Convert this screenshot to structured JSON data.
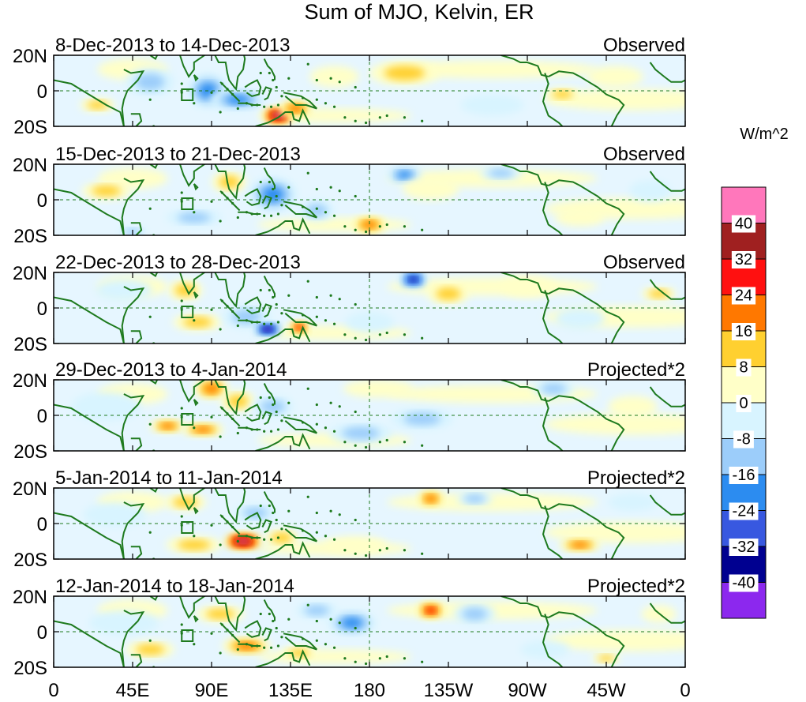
{
  "chart_data": {
    "type": "heatmap",
    "title": "Sum of MJO, Kelvin, ER",
    "units_label": "W/m^2",
    "x_ticks": [
      "0",
      "45E",
      "90E",
      "135E",
      "180",
      "135W",
      "90W",
      "45W",
      "0"
    ],
    "y_ticks": [
      "20N",
      "0",
      "20S"
    ],
    "lon_range": [
      0,
      360
    ],
    "lat_range": [
      -20,
      20
    ],
    "panels": [
      {
        "dates": "8-Dec-2013 to 14-Dec-2013",
        "kind": "Observed"
      },
      {
        "dates": "15-Dec-2013 to 21-Dec-2013",
        "kind": "Observed"
      },
      {
        "dates": "22-Dec-2013 to 28-Dec-2013",
        "kind": "Observed"
      },
      {
        "dates": "29-Dec-2013 to 4-Jan-2014",
        "kind": "Projected*2"
      },
      {
        "dates": "5-Jan-2014 to 11-Jan-2014",
        "kind": "Projected*2"
      },
      {
        "dates": "12-Jan-2014 to 18-Jan-2014",
        "kind": "Projected*2"
      }
    ],
    "colorbar": {
      "levels": [
        "40",
        "32",
        "24",
        "16",
        "8",
        "0",
        "-8",
        "-16",
        "-24",
        "-32",
        "-40"
      ],
      "colors": [
        "#ff77bb",
        "#a02020",
        "#ff1010",
        "#ff7800",
        "#ffd030",
        "#ffffc8",
        "#d8f4ff",
        "#9ccdfa",
        "#2c8cf0",
        "#3858e0",
        "#000090",
        "#8c28ee"
      ]
    },
    "anomalies": [
      [
        {
          "lon": 25,
          "lat": -8,
          "v": 12,
          "dlon": 10,
          "dlat": 4
        },
        {
          "lon": 55,
          "lat": 5,
          "v": -10,
          "dlon": 14,
          "dlat": 8
        },
        {
          "lon": 88,
          "lat": 0,
          "v": -22,
          "dlon": 12,
          "dlat": 10
        },
        {
          "lon": 105,
          "lat": -5,
          "v": -20,
          "dlon": 16,
          "dlat": 6
        },
        {
          "lon": 128,
          "lat": -14,
          "v": 42,
          "dlon": 9,
          "dlat": 5
        },
        {
          "lon": 138,
          "lat": -10,
          "v": 18,
          "dlon": 10,
          "dlat": 5
        },
        {
          "lon": 160,
          "lat": 8,
          "v": 8,
          "dlon": 14,
          "dlat": 6
        },
        {
          "lon": 200,
          "lat": 10,
          "v": 9,
          "dlon": 20,
          "dlat": 7
        },
        {
          "lon": 250,
          "lat": -8,
          "v": -6,
          "dlon": 18,
          "dlat": 6
        },
        {
          "lon": 290,
          "lat": -2,
          "v": 14,
          "dlon": 10,
          "dlat": 4
        },
        {
          "lon": 320,
          "lat": 8,
          "v": 8,
          "dlon": 16,
          "dlat": 6
        }
      ],
      [
        {
          "lon": 30,
          "lat": 5,
          "v": 12,
          "dlon": 14,
          "dlat": 5
        },
        {
          "lon": 45,
          "lat": -18,
          "v": -16,
          "dlon": 8,
          "dlat": 3
        },
        {
          "lon": 80,
          "lat": -10,
          "v": -12,
          "dlon": 16,
          "dlat": 5
        },
        {
          "lon": 100,
          "lat": 10,
          "v": 10,
          "dlon": 10,
          "dlat": 6
        },
        {
          "lon": 125,
          "lat": 3,
          "v": -24,
          "dlon": 14,
          "dlat": 10
        },
        {
          "lon": 150,
          "lat": -6,
          "v": -12,
          "dlon": 10,
          "dlat": 6
        },
        {
          "lon": 180,
          "lat": -14,
          "v": 24,
          "dlon": 10,
          "dlat": 5
        },
        {
          "lon": 200,
          "lat": 14,
          "v": -18,
          "dlon": 10,
          "dlat": 5
        },
        {
          "lon": 215,
          "lat": 6,
          "v": 8,
          "dlon": 16,
          "dlat": 6
        },
        {
          "lon": 255,
          "lat": 15,
          "v": -12,
          "dlon": 12,
          "dlat": 4
        },
        {
          "lon": 300,
          "lat": -10,
          "v": 8,
          "dlon": 14,
          "dlat": 5
        },
        {
          "lon": 340,
          "lat": 5,
          "v": -8,
          "dlon": 12,
          "dlat": 6
        }
      ],
      [
        {
          "lon": 40,
          "lat": 10,
          "v": -8,
          "dlon": 16,
          "dlat": 6
        },
        {
          "lon": 75,
          "lat": 10,
          "v": 16,
          "dlon": 10,
          "dlat": 6
        },
        {
          "lon": 82,
          "lat": -8,
          "v": 14,
          "dlon": 14,
          "dlat": 5
        },
        {
          "lon": 110,
          "lat": -5,
          "v": -10,
          "dlon": 14,
          "dlat": 7
        },
        {
          "lon": 122,
          "lat": -12,
          "v": -44,
          "dlon": 8,
          "dlat": 4
        },
        {
          "lon": 140,
          "lat": -11,
          "v": 26,
          "dlon": 6,
          "dlat": 4
        },
        {
          "lon": 205,
          "lat": 16,
          "v": -34,
          "dlon": 8,
          "dlat": 5
        },
        {
          "lon": 225,
          "lat": 8,
          "v": 10,
          "dlon": 12,
          "dlat": 6
        },
        {
          "lon": 180,
          "lat": -8,
          "v": -8,
          "dlon": 14,
          "dlat": 6
        },
        {
          "lon": 270,
          "lat": 12,
          "v": 8,
          "dlon": 16,
          "dlat": 6
        },
        {
          "lon": 300,
          "lat": -6,
          "v": -8,
          "dlon": 14,
          "dlat": 6
        },
        {
          "lon": 345,
          "lat": 8,
          "v": 14,
          "dlon": 10,
          "dlat": 4
        }
      ],
      [
        {
          "lon": 30,
          "lat": 5,
          "v": -8,
          "dlon": 20,
          "dlat": 8
        },
        {
          "lon": 65,
          "lat": -6,
          "v": 20,
          "dlon": 10,
          "dlat": 4
        },
        {
          "lon": 85,
          "lat": -8,
          "v": 18,
          "dlon": 12,
          "dlat": 4
        },
        {
          "lon": 90,
          "lat": 15,
          "v": 20,
          "dlon": 10,
          "dlat": 6
        },
        {
          "lon": 105,
          "lat": 8,
          "v": 14,
          "dlon": 10,
          "dlat": 6
        },
        {
          "lon": 125,
          "lat": 5,
          "v": -12,
          "dlon": 12,
          "dlat": 6
        },
        {
          "lon": 175,
          "lat": -10,
          "v": -16,
          "dlon": 18,
          "dlat": 6
        },
        {
          "lon": 210,
          "lat": -2,
          "v": -10,
          "dlon": 18,
          "dlat": 6
        },
        {
          "lon": 185,
          "lat": 15,
          "v": 8,
          "dlon": 20,
          "dlat": 5
        },
        {
          "lon": 285,
          "lat": 15,
          "v": -14,
          "dlon": 12,
          "dlat": 5
        },
        {
          "lon": 330,
          "lat": 5,
          "v": 6,
          "dlon": 14,
          "dlat": 6
        }
      ],
      [
        {
          "lon": 35,
          "lat": 5,
          "v": -8,
          "dlon": 18,
          "dlat": 7
        },
        {
          "lon": 75,
          "lat": 12,
          "v": 12,
          "dlon": 12,
          "dlat": 5
        },
        {
          "lon": 80,
          "lat": -12,
          "v": 16,
          "dlon": 16,
          "dlat": 5
        },
        {
          "lon": 108,
          "lat": -10,
          "v": 42,
          "dlon": 11,
          "dlat": 5
        },
        {
          "lon": 130,
          "lat": -8,
          "v": 16,
          "dlon": 10,
          "dlat": 5
        },
        {
          "lon": 115,
          "lat": 6,
          "v": -10,
          "dlon": 12,
          "dlat": 5
        },
        {
          "lon": 172,
          "lat": -12,
          "v": 8,
          "dlon": 18,
          "dlat": 5
        },
        {
          "lon": 215,
          "lat": 14,
          "v": 24,
          "dlon": 8,
          "dlat": 5
        },
        {
          "lon": 240,
          "lat": 14,
          "v": -12,
          "dlon": 10,
          "dlat": 4
        },
        {
          "lon": 300,
          "lat": -12,
          "v": 18,
          "dlon": 12,
          "dlat": 4
        },
        {
          "lon": 330,
          "lat": 12,
          "v": -8,
          "dlon": 14,
          "dlat": 5
        }
      ],
      [
        {
          "lon": 40,
          "lat": 5,
          "v": -8,
          "dlon": 20,
          "dlat": 7
        },
        {
          "lon": 55,
          "lat": -10,
          "v": 10,
          "dlon": 14,
          "dlat": 5
        },
        {
          "lon": 95,
          "lat": 10,
          "v": 14,
          "dlon": 14,
          "dlat": 5
        },
        {
          "lon": 110,
          "lat": -8,
          "v": 20,
          "dlon": 14,
          "dlat": 5
        },
        {
          "lon": 140,
          "lat": -12,
          "v": 14,
          "dlon": 10,
          "dlat": 4
        },
        {
          "lon": 170,
          "lat": 5,
          "v": -18,
          "dlon": 14,
          "dlat": 7
        },
        {
          "lon": 150,
          "lat": 12,
          "v": -10,
          "dlon": 12,
          "dlat": 5
        },
        {
          "lon": 215,
          "lat": 12,
          "v": 30,
          "dlon": 8,
          "dlat": 5
        },
        {
          "lon": 240,
          "lat": 10,
          "v": -10,
          "dlon": 12,
          "dlat": 6
        },
        {
          "lon": 280,
          "lat": -10,
          "v": -8,
          "dlon": 14,
          "dlat": 5
        },
        {
          "lon": 315,
          "lat": -15,
          "v": 12,
          "dlon": 8,
          "dlat": 3
        },
        {
          "lon": 345,
          "lat": 10,
          "v": 8,
          "dlon": 10,
          "dlat": 5
        }
      ]
    ]
  }
}
